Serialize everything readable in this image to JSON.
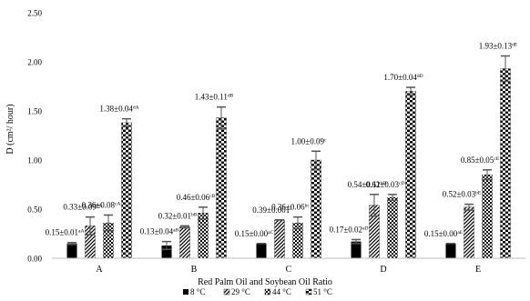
{
  "chart_data": {
    "type": "bar",
    "ylabel": "D (cm²/ hour)",
    "xlabel": "Red Palm Oil and Soybean Oil Ratio",
    "ylim": [
      0,
      2.5
    ],
    "yticks": [
      0,
      0.5,
      1.0,
      1.5,
      2.0,
      2.5
    ],
    "ytick_labels": [
      "0.00",
      "0.50",
      "1.00",
      "1.50",
      "2.00",
      "2.50"
    ],
    "grid": false,
    "legend_position": "bottom",
    "categories": [
      "A",
      "B",
      "C",
      "D",
      "E"
    ],
    "series": [
      {
        "name": "8 °C",
        "pattern": "solid",
        "values": [
          0.15,
          0.13,
          0.15,
          0.17,
          0.15
        ],
        "errors": [
          0.01,
          0.04,
          0.0,
          0.02,
          0.0
        ],
        "labels": [
          "0.15±0.01",
          "0.13±0.04",
          "0.15±0.00",
          "0.17±0.02",
          "0.15±0.00"
        ],
        "sups": [
          "aA",
          "aB",
          "aC",
          "aD",
          "aE"
        ]
      },
      {
        "name": "29 °C",
        "pattern": "diagonal",
        "values": [
          0.33,
          0.32,
          0.39,
          0.54,
          0.52
        ],
        "errors": [
          0.09,
          0.01,
          0.001,
          0.11,
          0.03
        ],
        "labels": [
          "0.33±0.09",
          "0.32±0.01",
          "0.39±0.001",
          "0.54±0.11",
          "0.52±0.03"
        ],
        "sups": [
          "bA",
          "bB",
          "c",
          "bD",
          "bE"
        ]
      },
      {
        "name": "44 °C",
        "pattern": "checker",
        "values": [
          0.36,
          0.46,
          0.36,
          0.62,
          0.85
        ],
        "errors": [
          0.08,
          0.06,
          0.06,
          0.03,
          0.05
        ],
        "labels": [
          "0.36±0.08",
          "0.46±0.06",
          "0.36±0.06",
          "0.62±0.03",
          "0.85±0.05"
        ],
        "sups": [
          "cA",
          "cB",
          "bc",
          "cD",
          "cE"
        ]
      },
      {
        "name": "51 °C",
        "pattern": "dots",
        "values": [
          1.38,
          1.43,
          1.0,
          1.7,
          1.93
        ],
        "errors": [
          0.04,
          0.11,
          0.09,
          0.04,
          0.13
        ],
        "labels": [
          "1.38±0.04",
          "1.43±0.11",
          "1.00±0.09",
          "1.70±0.04",
          "1.93±0.13"
        ],
        "sups": [
          "dA",
          "dB",
          "c",
          "dD",
          "dE"
        ]
      }
    ]
  }
}
